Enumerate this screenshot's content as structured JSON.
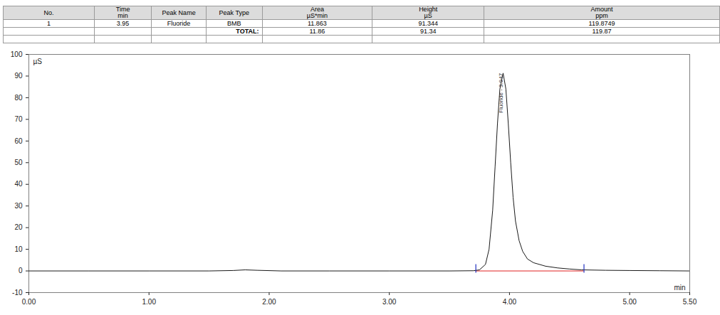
{
  "table": {
    "columns": [
      [
        "No."
      ],
      [
        "Time",
        "min"
      ],
      [
        "Peak Name"
      ],
      [
        "Peak Type"
      ],
      [
        "Area",
        "µS*min"
      ],
      [
        "Height",
        "µS"
      ],
      [
        "Amount",
        "ppm"
      ]
    ],
    "rows": [
      [
        "1",
        "3.95",
        "Fluoride",
        "BMB",
        "11.863",
        "91.344",
        "119.8749"
      ]
    ],
    "total": {
      "label": "TOTAL:",
      "values": [
        "11.86",
        "91.34",
        "119.87"
      ]
    }
  },
  "chart_data": {
    "type": "line",
    "y_label": "µS",
    "x_label": "min",
    "x": [
      0,
      0.5,
      1.0,
      1.5,
      1.7,
      1.8,
      1.9,
      2.1,
      2.5,
      3.0,
      3.5,
      3.7,
      3.75,
      3.8,
      3.83,
      3.86,
      3.88,
      3.9,
      3.92,
      3.947,
      3.97,
      3.99,
      4.01,
      4.03,
      4.05,
      4.08,
      4.11,
      4.15,
      4.2,
      4.3,
      4.4,
      4.5,
      4.6,
      4.8,
      5.0,
      5.25,
      5.5
    ],
    "values": [
      0,
      0,
      0,
      0,
      0.2,
      0.5,
      0.3,
      0,
      0,
      0,
      0,
      0.1,
      0.5,
      3,
      10,
      28,
      48,
      68,
      84,
      91.344,
      84,
      68,
      50,
      34,
      23,
      14,
      9,
      5.5,
      3.8,
      2.2,
      1.4,
      0.9,
      0.5,
      0.3,
      0.2,
      0.1,
      0
    ],
    "color": "#1a1a1a",
    "annotations": [
      {
        "text": "Fluoride - 3.947",
        "x": 3.947,
        "y": 91.344
      }
    ],
    "baseline": {
      "start": 3.72,
      "end": 4.62,
      "level": 0,
      "color": "#e02020",
      "marker_color": "#2030c0"
    },
    "xlim": [
      0,
      5.5
    ],
    "xticks": [
      {
        "value": 0,
        "label": "0.00"
      },
      {
        "value": 1,
        "label": "1.00"
      },
      {
        "value": 2,
        "label": "2.00"
      },
      {
        "value": 3,
        "label": "3.00"
      },
      {
        "value": 4,
        "label": "4.00"
      },
      {
        "value": 5,
        "label": "5.00"
      },
      {
        "value": 5.5,
        "label": "5.50"
      }
    ],
    "ylim": [
      -10,
      100
    ],
    "yticks": [
      -10,
      0,
      10,
      20,
      30,
      40,
      50,
      60,
      70,
      80,
      90,
      100
    ],
    "grid": false
  }
}
